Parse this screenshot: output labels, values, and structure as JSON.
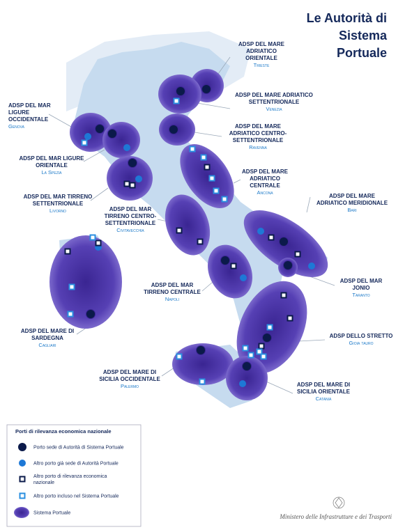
{
  "title": [
    "Le Autorità di",
    "Sistema",
    "Portuale"
  ],
  "authorities": [
    {
      "name": [
        "ADSP DEL MARE",
        "ADRIATICO",
        "ORIENTALE"
      ],
      "port": "Trieste"
    },
    {
      "name": [
        "ADSP DEL MARE ADRIATICO",
        "SETTENTRIONALE"
      ],
      "port": "Venezia"
    },
    {
      "name": [
        "ADSP DEL MARE",
        "ADRIATICO CENTRO-",
        "SETTENTRIONALE"
      ],
      "port": "Ravenna"
    },
    {
      "name": [
        "ADSP DEL MARE",
        "ADRIATICO",
        "CENTRALE"
      ],
      "port": "Ancona"
    },
    {
      "name": [
        "ADSP DEL MARE",
        "ADRIATICO MERIDIONALE"
      ],
      "port": "Bari"
    },
    {
      "name": [
        "ADSP DEL MAR",
        "JONIO"
      ],
      "port": "Taranto"
    },
    {
      "name": [
        "ADSP DELLO STRETTO"
      ],
      "port": "Gioia tauro"
    },
    {
      "name": [
        "ADSP DEL MARE DI",
        "SICILIA ORIENTALE"
      ],
      "port": "Catania"
    },
    {
      "name": [
        "ADSP DEL MARE DI",
        "SICILIA OCCIDENTALE"
      ],
      "port": "Palermo"
    },
    {
      "name": [
        "ADSP DEL MARE DI",
        "SARDEGNA"
      ],
      "port": "Cagliari"
    },
    {
      "name": [
        "ADSP DEL MAR",
        "TIRRENO CENTRALE"
      ],
      "port": "Napoli"
    },
    {
      "name": [
        "ADSP DEL MAR",
        "TIRRENO CENTRO-",
        "SETTENTRIONALE"
      ],
      "port": "Civitavecchia"
    },
    {
      "name": [
        "ADSP DEL MAR TIRRENO",
        "SETTENTRIONALE"
      ],
      "port": "Livorno"
    },
    {
      "name": [
        "ADSP DEL MAR LIGURE",
        "ORIENTALE"
      ],
      "port": "La Spezia"
    },
    {
      "name": [
        "ADSP DEL MAR",
        "LIGURE",
        "OCCIDENTALE"
      ],
      "port": "Genova"
    }
  ],
  "legend": {
    "title": "Porti di rilevanza economica nazionale",
    "items": [
      [
        "Porto sede di Autorità di Sistema Portuale"
      ],
      [
        "Altro porto già sede di Autorità Portuale"
      ],
      [
        "Altro porto di rilevanza economica",
        "nazionale"
      ],
      [
        "Altro porto incluso nel Sistema Portuale"
      ],
      [
        "Sistema Portuale"
      ]
    ]
  },
  "footer": "Ministero delle Infrastrutture e dei Trasporti"
}
